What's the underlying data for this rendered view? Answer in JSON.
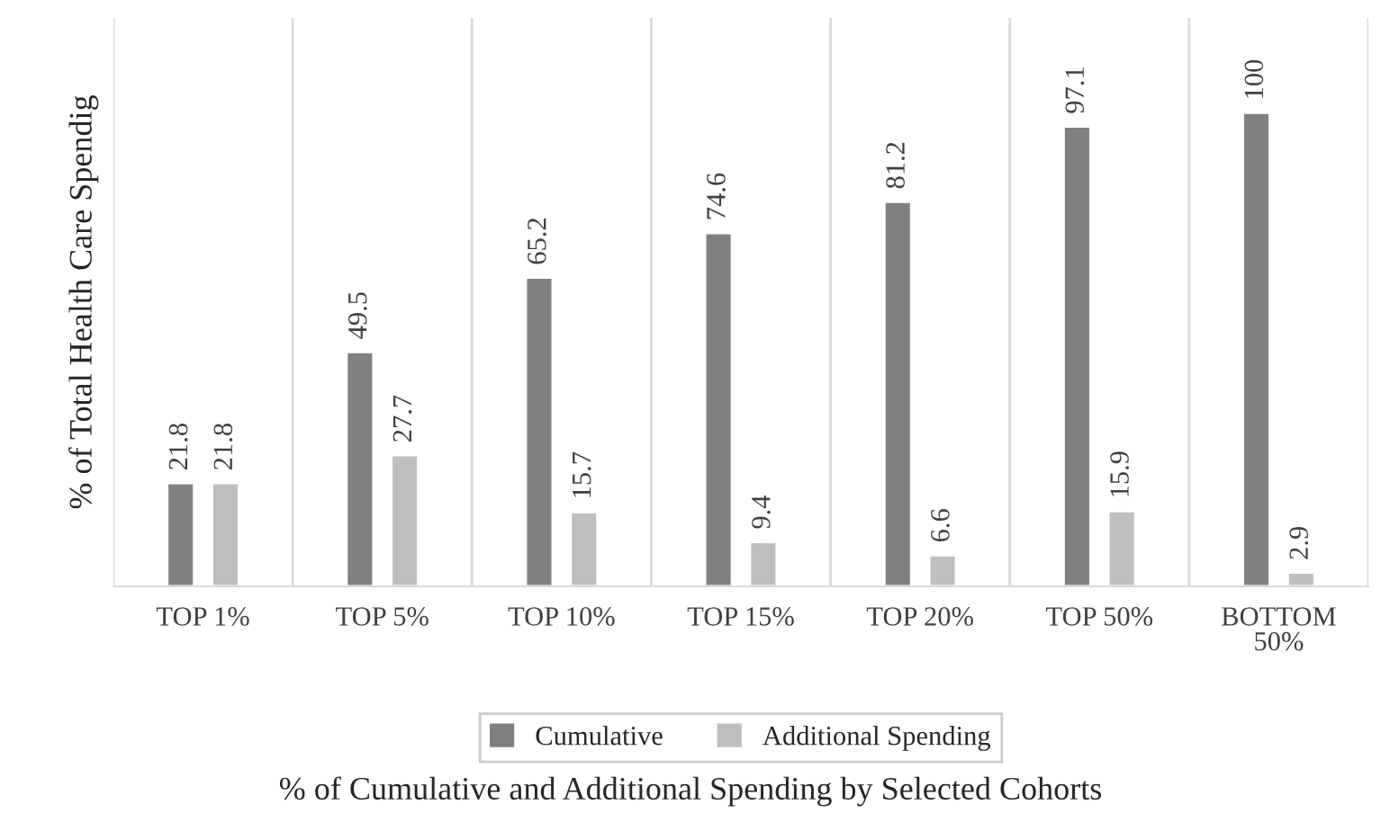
{
  "chart_data": {
    "type": "bar",
    "categories": [
      "TOP 1%",
      "TOP 5%",
      "TOP 10%",
      "TOP 15%",
      "TOP 20%",
      "TOP 50%",
      "BOTTOM\n50%"
    ],
    "series": [
      {
        "name": "Cumulative",
        "color": "#808080",
        "values": [
          21.8,
          49.5,
          65.2,
          74.6,
          81.2,
          97.1,
          100
        ]
      },
      {
        "name": "Additional Spending",
        "color": "#bfbfbf",
        "values": [
          21.8,
          27.7,
          15.7,
          9.4,
          6.6,
          15.9,
          2.9
        ]
      }
    ],
    "xlabel": "% of Cumulative and Additional Spending by Selected Cohorts",
    "ylabel": "% of Total Health Care Spendig",
    "ylim": [
      0,
      120
    ],
    "tick_labels": "x",
    "data_labels": true,
    "grid": "x",
    "legend": "bottom"
  }
}
